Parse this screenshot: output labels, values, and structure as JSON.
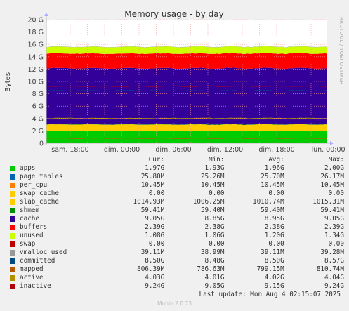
{
  "chart_data": {
    "type": "area",
    "title": "Memory usage - by day",
    "ylabel": "Bytes",
    "side_label": "RRDTOOL / TOBI OETIKER",
    "y_ticks": [
      "0",
      "2 G",
      "4 G",
      "6 G",
      "8 G",
      "10 G",
      "12 G",
      "14 G",
      "16 G",
      "18 G",
      "20 G"
    ],
    "ylim": [
      0,
      20
    ],
    "x_ticks": [
      "sam. 18:00",
      "dim. 00:00",
      "dim. 06:00",
      "dim. 12:00",
      "dim. 18:00",
      "lun. 00:00"
    ],
    "grid": true,
    "columns": [
      "Cur:",
      "Min:",
      "Avg:",
      "Max:"
    ],
    "series": [
      {
        "name": "apps",
        "color": "#00cc00",
        "cur": "1.97G",
        "min": "1.93G",
        "avg": "1.96G",
        "max": "2.00G",
        "value": 1.97
      },
      {
        "name": "page_tables",
        "color": "#0066b3",
        "cur": "25.80M",
        "min": "25.26M",
        "avg": "25.70M",
        "max": "26.17M",
        "value": 0.0258
      },
      {
        "name": "per_cpu",
        "color": "#ff8000",
        "cur": "10.45M",
        "min": "10.45M",
        "avg": "10.45M",
        "max": "10.45M",
        "value": 0.01045
      },
      {
        "name": "swap_cache",
        "color": "#ffcc00",
        "cur": "0.00",
        "min": "0.00",
        "avg": "0.00",
        "max": "0.00",
        "value": 0
      },
      {
        "name": "slab_cache",
        "color": "#ffcc00",
        "cur": "1014.93M",
        "min": "1006.25M",
        "avg": "1010.74M",
        "max": "1015.31M",
        "value": 1.0149
      },
      {
        "name": "shmem",
        "color": "#008f00",
        "cur": "59.41M",
        "min": "59.40M",
        "avg": "59.40M",
        "max": "59.41M",
        "value": 0.0594
      },
      {
        "name": "cache",
        "color": "#330099",
        "cur": "9.05G",
        "min": "8.85G",
        "avg": "8.95G",
        "max": "9.05G",
        "value": 9.05
      },
      {
        "name": "buffers",
        "color": "#ff0000",
        "cur": "2.39G",
        "min": "2.38G",
        "avg": "2.38G",
        "max": "2.39G",
        "value": 2.39
      },
      {
        "name": "unused",
        "color": "#ccff00",
        "cur": "1.08G",
        "min": "1.06G",
        "avg": "1.20G",
        "max": "1.34G",
        "value": 1.08
      },
      {
        "name": "swap",
        "color": "#b80000",
        "cur": "0.00",
        "min": "0.00",
        "avg": "0.00",
        "max": "0.00",
        "value": 0
      },
      {
        "name": "vmalloc_used",
        "color": "#999999",
        "cur": "39.11M",
        "min": "38.99M",
        "avg": "39.11M",
        "max": "39.28M",
        "value": 0.0391
      },
      {
        "name": "committed",
        "color": "#00487d",
        "cur": "8.50G",
        "min": "8.48G",
        "avg": "8.50G",
        "max": "8.57G",
        "value": 8.5,
        "line": true
      },
      {
        "name": "mapped",
        "color": "#b35a00",
        "cur": "806.39M",
        "min": "786.63M",
        "avg": "799.15M",
        "max": "810.74M",
        "value": 0.806,
        "line": true
      },
      {
        "name": "active",
        "color": "#b38f00",
        "cur": "4.03G",
        "min": "4.01G",
        "avg": "4.02G",
        "max": "4.04G",
        "value": 4.03,
        "line": true
      },
      {
        "name": "inactive",
        "color": "#b3000f",
        "cur": "9.24G",
        "min": "9.05G",
        "avg": "9.15G",
        "max": "9.24G",
        "value": 9.24,
        "line": true
      }
    ]
  },
  "footer": {
    "last_update": "Last update: Mon Aug  4 02:15:07 2025",
    "version": "Munin 2.0.73"
  }
}
